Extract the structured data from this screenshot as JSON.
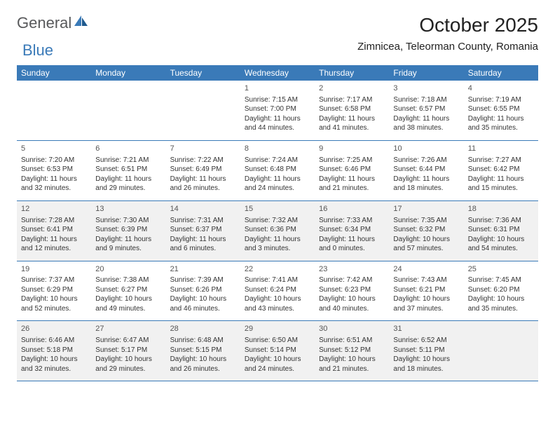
{
  "logo": {
    "general": "General",
    "blue": "Blue"
  },
  "title": "October 2025",
  "location": "Zimnicea, Teleorman County, Romania",
  "colors": {
    "header_bg": "#3a7ab8",
    "header_text": "#ffffff",
    "shaded_bg": "#f1f1f1",
    "border": "#3a7ab8",
    "logo_gray": "#58595b",
    "logo_blue": "#3a7ab8"
  },
  "dayHeaders": [
    "Sunday",
    "Monday",
    "Tuesday",
    "Wednesday",
    "Thursday",
    "Friday",
    "Saturday"
  ],
  "weeks": [
    {
      "shaded": false,
      "cells": [
        {
          "empty": true
        },
        {
          "empty": true
        },
        {
          "empty": true
        },
        {
          "num": "1",
          "sunrise": "Sunrise: 7:15 AM",
          "sunset": "Sunset: 7:00 PM",
          "day1": "Daylight: 11 hours",
          "day2": "and 44 minutes."
        },
        {
          "num": "2",
          "sunrise": "Sunrise: 7:17 AM",
          "sunset": "Sunset: 6:58 PM",
          "day1": "Daylight: 11 hours",
          "day2": "and 41 minutes."
        },
        {
          "num": "3",
          "sunrise": "Sunrise: 7:18 AM",
          "sunset": "Sunset: 6:57 PM",
          "day1": "Daylight: 11 hours",
          "day2": "and 38 minutes."
        },
        {
          "num": "4",
          "sunrise": "Sunrise: 7:19 AM",
          "sunset": "Sunset: 6:55 PM",
          "day1": "Daylight: 11 hours",
          "day2": "and 35 minutes."
        }
      ]
    },
    {
      "shaded": false,
      "cells": [
        {
          "num": "5",
          "sunrise": "Sunrise: 7:20 AM",
          "sunset": "Sunset: 6:53 PM",
          "day1": "Daylight: 11 hours",
          "day2": "and 32 minutes."
        },
        {
          "num": "6",
          "sunrise": "Sunrise: 7:21 AM",
          "sunset": "Sunset: 6:51 PM",
          "day1": "Daylight: 11 hours",
          "day2": "and 29 minutes."
        },
        {
          "num": "7",
          "sunrise": "Sunrise: 7:22 AM",
          "sunset": "Sunset: 6:49 PM",
          "day1": "Daylight: 11 hours",
          "day2": "and 26 minutes."
        },
        {
          "num": "8",
          "sunrise": "Sunrise: 7:24 AM",
          "sunset": "Sunset: 6:48 PM",
          "day1": "Daylight: 11 hours",
          "day2": "and 24 minutes."
        },
        {
          "num": "9",
          "sunrise": "Sunrise: 7:25 AM",
          "sunset": "Sunset: 6:46 PM",
          "day1": "Daylight: 11 hours",
          "day2": "and 21 minutes."
        },
        {
          "num": "10",
          "sunrise": "Sunrise: 7:26 AM",
          "sunset": "Sunset: 6:44 PM",
          "day1": "Daylight: 11 hours",
          "day2": "and 18 minutes."
        },
        {
          "num": "11",
          "sunrise": "Sunrise: 7:27 AM",
          "sunset": "Sunset: 6:42 PM",
          "day1": "Daylight: 11 hours",
          "day2": "and 15 minutes."
        }
      ]
    },
    {
      "shaded": true,
      "cells": [
        {
          "num": "12",
          "sunrise": "Sunrise: 7:28 AM",
          "sunset": "Sunset: 6:41 PM",
          "day1": "Daylight: 11 hours",
          "day2": "and 12 minutes."
        },
        {
          "num": "13",
          "sunrise": "Sunrise: 7:30 AM",
          "sunset": "Sunset: 6:39 PM",
          "day1": "Daylight: 11 hours",
          "day2": "and 9 minutes."
        },
        {
          "num": "14",
          "sunrise": "Sunrise: 7:31 AM",
          "sunset": "Sunset: 6:37 PM",
          "day1": "Daylight: 11 hours",
          "day2": "and 6 minutes."
        },
        {
          "num": "15",
          "sunrise": "Sunrise: 7:32 AM",
          "sunset": "Sunset: 6:36 PM",
          "day1": "Daylight: 11 hours",
          "day2": "and 3 minutes."
        },
        {
          "num": "16",
          "sunrise": "Sunrise: 7:33 AM",
          "sunset": "Sunset: 6:34 PM",
          "day1": "Daylight: 11 hours",
          "day2": "and 0 minutes."
        },
        {
          "num": "17",
          "sunrise": "Sunrise: 7:35 AM",
          "sunset": "Sunset: 6:32 PM",
          "day1": "Daylight: 10 hours",
          "day2": "and 57 minutes."
        },
        {
          "num": "18",
          "sunrise": "Sunrise: 7:36 AM",
          "sunset": "Sunset: 6:31 PM",
          "day1": "Daylight: 10 hours",
          "day2": "and 54 minutes."
        }
      ]
    },
    {
      "shaded": false,
      "cells": [
        {
          "num": "19",
          "sunrise": "Sunrise: 7:37 AM",
          "sunset": "Sunset: 6:29 PM",
          "day1": "Daylight: 10 hours",
          "day2": "and 52 minutes."
        },
        {
          "num": "20",
          "sunrise": "Sunrise: 7:38 AM",
          "sunset": "Sunset: 6:27 PM",
          "day1": "Daylight: 10 hours",
          "day2": "and 49 minutes."
        },
        {
          "num": "21",
          "sunrise": "Sunrise: 7:39 AM",
          "sunset": "Sunset: 6:26 PM",
          "day1": "Daylight: 10 hours",
          "day2": "and 46 minutes."
        },
        {
          "num": "22",
          "sunrise": "Sunrise: 7:41 AM",
          "sunset": "Sunset: 6:24 PM",
          "day1": "Daylight: 10 hours",
          "day2": "and 43 minutes."
        },
        {
          "num": "23",
          "sunrise": "Sunrise: 7:42 AM",
          "sunset": "Sunset: 6:23 PM",
          "day1": "Daylight: 10 hours",
          "day2": "and 40 minutes."
        },
        {
          "num": "24",
          "sunrise": "Sunrise: 7:43 AM",
          "sunset": "Sunset: 6:21 PM",
          "day1": "Daylight: 10 hours",
          "day2": "and 37 minutes."
        },
        {
          "num": "25",
          "sunrise": "Sunrise: 7:45 AM",
          "sunset": "Sunset: 6:20 PM",
          "day1": "Daylight: 10 hours",
          "day2": "and 35 minutes."
        }
      ]
    },
    {
      "shaded": true,
      "cells": [
        {
          "num": "26",
          "sunrise": "Sunrise: 6:46 AM",
          "sunset": "Sunset: 5:18 PM",
          "day1": "Daylight: 10 hours",
          "day2": "and 32 minutes."
        },
        {
          "num": "27",
          "sunrise": "Sunrise: 6:47 AM",
          "sunset": "Sunset: 5:17 PM",
          "day1": "Daylight: 10 hours",
          "day2": "and 29 minutes."
        },
        {
          "num": "28",
          "sunrise": "Sunrise: 6:48 AM",
          "sunset": "Sunset: 5:15 PM",
          "day1": "Daylight: 10 hours",
          "day2": "and 26 minutes."
        },
        {
          "num": "29",
          "sunrise": "Sunrise: 6:50 AM",
          "sunset": "Sunset: 5:14 PM",
          "day1": "Daylight: 10 hours",
          "day2": "and 24 minutes."
        },
        {
          "num": "30",
          "sunrise": "Sunrise: 6:51 AM",
          "sunset": "Sunset: 5:12 PM",
          "day1": "Daylight: 10 hours",
          "day2": "and 21 minutes."
        },
        {
          "num": "31",
          "sunrise": "Sunrise: 6:52 AM",
          "sunset": "Sunset: 5:11 PM",
          "day1": "Daylight: 10 hours",
          "day2": "and 18 minutes."
        },
        {
          "empty": true
        }
      ]
    }
  ]
}
